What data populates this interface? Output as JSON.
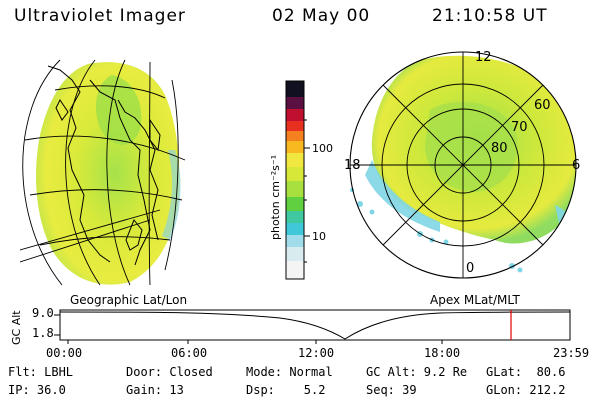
{
  "header": {
    "title": "Ultraviolet Imager",
    "date": "02 May 00",
    "time": "21:10:58 UT"
  },
  "colorbar": {
    "label": "photon cm⁻²s⁻¹",
    "ticks": [
      "100",
      "10"
    ]
  },
  "polar": {
    "mlt_labels": [
      "12",
      "18",
      "6",
      "0"
    ],
    "lat_labels": [
      "60",
      "70",
      "80"
    ]
  },
  "left_caption": "Geographic Lat/Lon",
  "right_caption": "Apex MLat/MLT",
  "altplot": {
    "ylabel": "GC Alt",
    "yticks": [
      "9.0",
      "1.8"
    ],
    "xticks": [
      "00:00",
      "06:00",
      "12:00",
      "18:00",
      "23:59"
    ],
    "marker_time": "21:10",
    "marker_color": "#e00000"
  },
  "status": {
    "row1": {
      "flt": "Flt: LBHL",
      "door": "Door: Closed",
      "mode": "Mode: Normal",
      "gcalt": "GC Alt: 9.2 Re",
      "glat": "GLat:  80.6"
    },
    "row2": {
      "ip": "IP: 36.0",
      "gain": "Gain: 13",
      "dsp": "Dsp:    5.2",
      "seq": "Seq: 39",
      "glon": "GLon: 212.2"
    }
  },
  "colors": {
    "auroral_yellow": "#e6e832",
    "auroral_green": "#9be04a",
    "low_cyan": "#7fd6e6",
    "grid": "#000000"
  }
}
